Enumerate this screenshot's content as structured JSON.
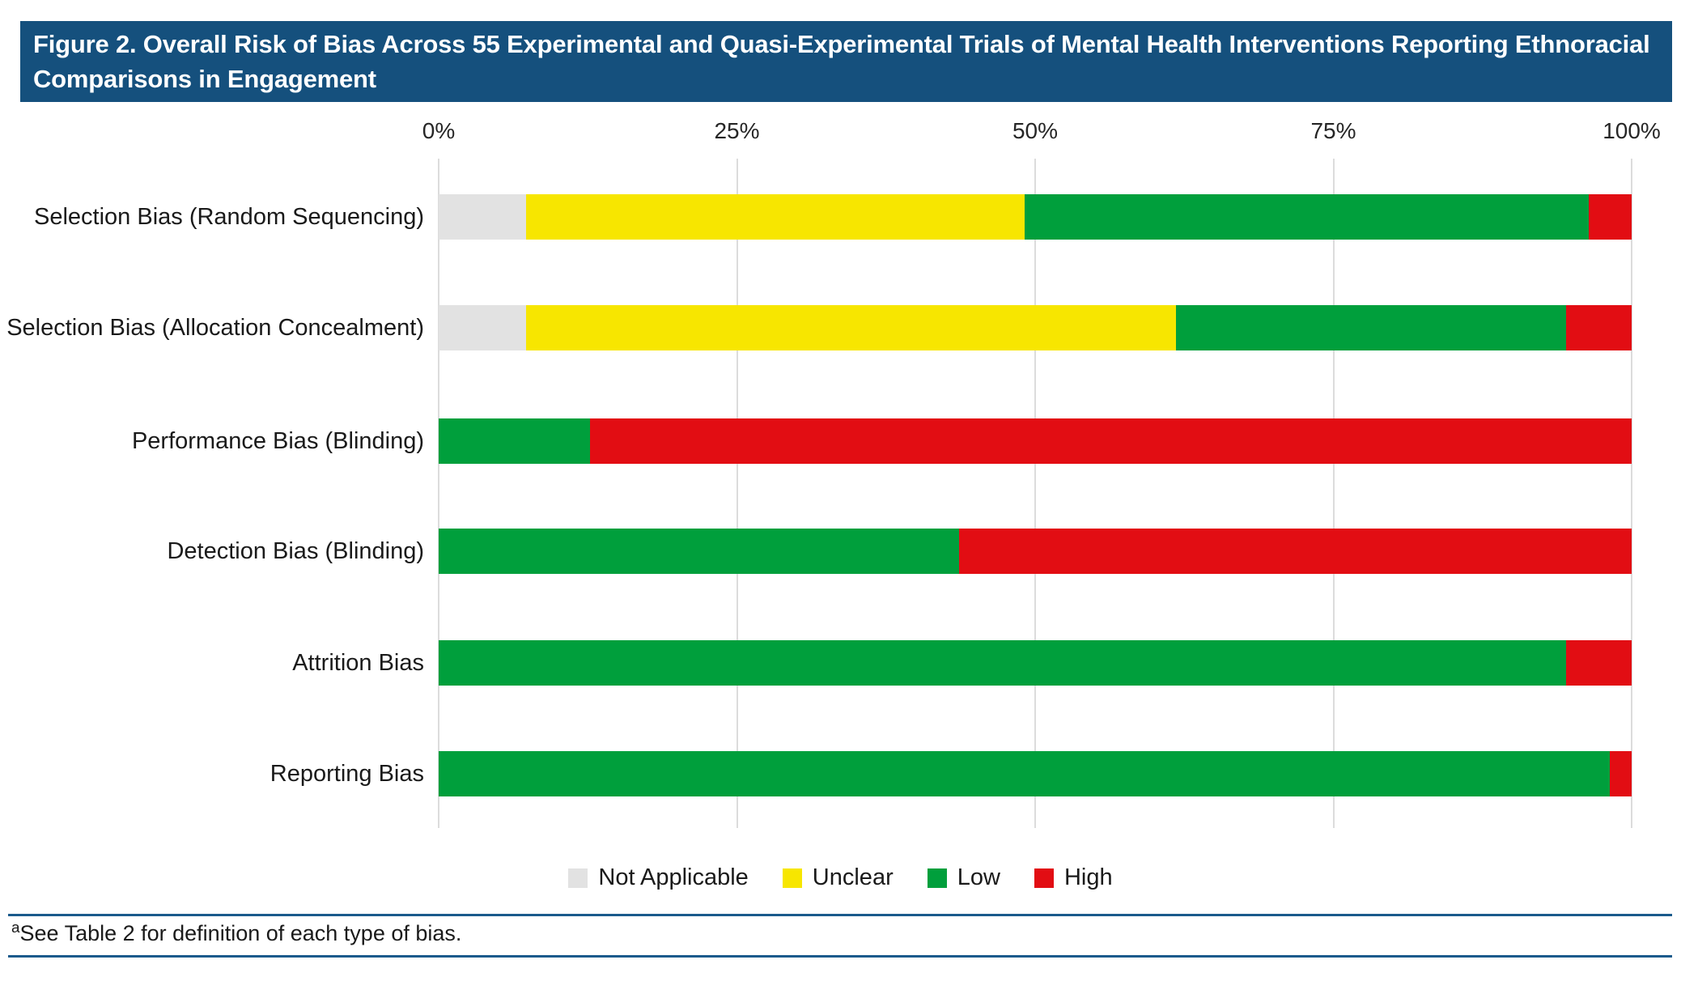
{
  "title": {
    "text": "Figure 2. Overall Risk of Bias Across 55 Experimental and Quasi-Experimental Trials of Mental Health Interventions Reporting Ethnoracial Comparisons in Engagement"
  },
  "footnote": {
    "superscript": "a",
    "text": "See Table 2 for definition of each type of bias."
  },
  "colors": {
    "title_bar": "#15507D",
    "footnote_rule": "#1A5A8C",
    "gridline": "#DCDCDC",
    "not_applicable": "#E2E2E2",
    "unclear": "#F7E600",
    "low": "#009F3C",
    "high": "#E20D13"
  },
  "chart_data": {
    "type": "bar",
    "orientation": "horizontal",
    "stacked": true,
    "units": "percent of 55 trials",
    "title": "Overall Risk of Bias Across 55 Experimental and Quasi-Experimental Trials",
    "xlabel": "",
    "ylabel": "",
    "xlim": [
      0,
      100
    ],
    "x_tick_labels": [
      "0%",
      "25%",
      "50%",
      "75%",
      "100%"
    ],
    "x_tick_values": [
      0,
      25,
      50,
      75,
      100
    ],
    "grid": true,
    "categories": [
      "Selection Bias (Random Sequencing)",
      "Selection Bias (Allocation Concealment)",
      "Performance Bias (Blinding)",
      "Detection Bias (Blinding)",
      "Attrition Bias",
      "Reporting Bias"
    ],
    "series": [
      {
        "name": "Not Applicable",
        "color_key": "not_applicable",
        "values": [
          7.3,
          7.3,
          0,
          0,
          0,
          0
        ]
      },
      {
        "name": "Unclear",
        "color_key": "unclear",
        "values": [
          41.8,
          54.5,
          0,
          0,
          0,
          0
        ]
      },
      {
        "name": "Low",
        "color_key": "low",
        "values": [
          47.3,
          32.7,
          12.7,
          43.6,
          94.5,
          98.2
        ]
      },
      {
        "name": "High",
        "color_key": "high",
        "values": [
          3.6,
          5.5,
          87.3,
          56.4,
          5.5,
          1.8
        ]
      }
    ],
    "legend": {
      "position": "bottom",
      "entries": [
        "Not Applicable",
        "Unclear",
        "Low",
        "High"
      ]
    }
  }
}
